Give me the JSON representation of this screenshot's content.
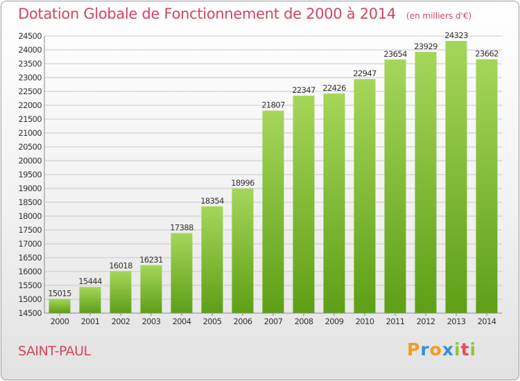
{
  "title": "Dotation Globale de Fonctionnement de 2000 à 2014",
  "subtitle": "(en milliers d'€)",
  "commune": "SAINT-PAUL",
  "logo": {
    "letters": [
      "P",
      "r",
      "o",
      "x",
      "i",
      "t",
      "i"
    ],
    "colors": [
      "#f59a1a",
      "#3b8fd6",
      "#f59a1a",
      "#3b8fd6",
      "#8cc63f",
      "#e64a5d",
      "#8cc63f"
    ]
  },
  "colors": {
    "title": "#d2455f",
    "bar_top": "#a5d65a",
    "bar_bottom": "#5e9f16",
    "grid": "#c8c8c8"
  },
  "chart_data": {
    "type": "bar",
    "categories": [
      "2000",
      "2001",
      "2002",
      "2003",
      "2004",
      "2005",
      "2006",
      "2007",
      "2008",
      "2009",
      "2010",
      "2011",
      "2012",
      "2013",
      "2014"
    ],
    "values": [
      15015,
      15444,
      16018,
      16231,
      17388,
      18354,
      18996,
      21807,
      22347,
      22426,
      22947,
      23654,
      23929,
      24323,
      23662
    ],
    "title": "Dotation Globale de Fonctionnement de 2000 à 2014",
    "xlabel": "",
    "ylabel": "",
    "ylim": [
      14500,
      24500
    ],
    "yticks": [
      14500,
      15000,
      15500,
      16000,
      16500,
      17000,
      17500,
      18000,
      18500,
      19000,
      19500,
      20000,
      20500,
      21000,
      21500,
      22000,
      22500,
      23000,
      23500,
      24000,
      24500
    ],
    "grid": true
  }
}
